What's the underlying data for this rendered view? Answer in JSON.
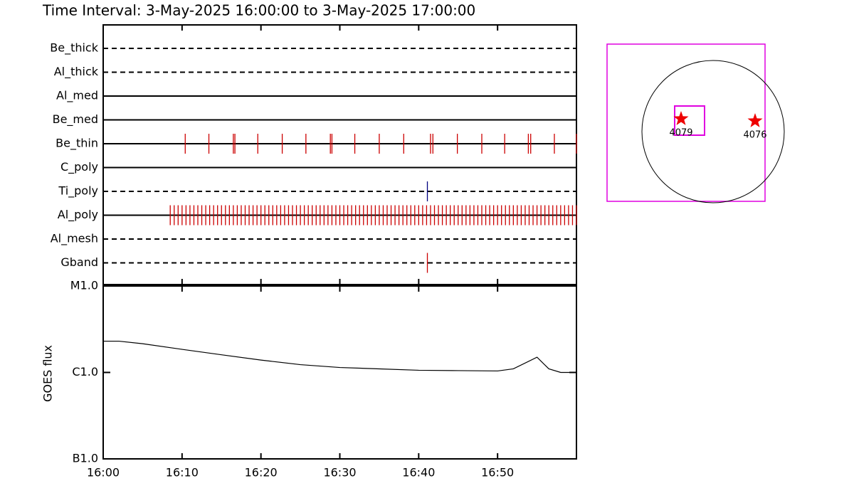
{
  "title": "Time Interval:  3-May-2025 16:00:00 to  3-May-2025 17:00:00",
  "chart_data": [
    {
      "type": "timeline",
      "xlim": [
        0,
        60
      ],
      "xticks": [
        {
          "value": 0,
          "label": "16:00"
        },
        {
          "value": 10,
          "label": "16:10"
        },
        {
          "value": 20,
          "label": "16:20"
        },
        {
          "value": 30,
          "label": "16:30"
        },
        {
          "value": 40,
          "label": "16:40"
        },
        {
          "value": 50,
          "label": "16:50"
        }
      ],
      "rows": [
        {
          "name": "Be_thick",
          "style": "dashed",
          "color": "#cc0000",
          "events": []
        },
        {
          "name": "Al_thick",
          "style": "dashed",
          "color": "#cc0000",
          "events": []
        },
        {
          "name": "Al_med",
          "style": "solid",
          "color": "#cc0000",
          "events": []
        },
        {
          "name": "Be_med",
          "style": "solid",
          "color": "#cc0000",
          "events": []
        },
        {
          "name": "Be_thin",
          "style": "solid",
          "color": "#cc0000",
          "events": [
            10.4,
            13.4,
            16.5,
            16.7,
            19.6,
            22.7,
            25.7,
            28.8,
            29.0,
            31.9,
            35.0,
            38.1,
            41.5,
            41.8,
            44.9,
            48.0,
            50.9,
            53.9,
            54.2,
            57.2,
            60.0
          ]
        },
        {
          "name": "C_poly",
          "style": "solid",
          "color": "#cc0000",
          "events": []
        },
        {
          "name": "Ti_poly",
          "style": "dashed",
          "color": "#000080",
          "events": [
            41.1
          ]
        },
        {
          "name": "Al_poly",
          "style": "solid",
          "color": "#cc0000",
          "events": [
            8.5,
            9,
            9.5,
            10,
            10.5,
            11,
            11.5,
            12,
            12.5,
            13,
            13.5,
            14,
            14.5,
            15,
            15.5,
            16,
            16.5,
            17,
            17.5,
            18,
            18.5,
            19,
            19.5,
            20,
            20.5,
            21,
            21.5,
            22,
            22.5,
            23,
            23.5,
            24,
            24.5,
            25,
            25.5,
            26,
            26.5,
            27,
            27.5,
            28,
            28.5,
            29,
            29.5,
            30,
            30.5,
            31,
            31.5,
            32,
            32.5,
            33,
            33.5,
            34,
            34.5,
            35,
            35.5,
            36,
            36.5,
            37,
            37.5,
            38,
            38.5,
            39,
            39.5,
            40,
            40.5,
            41,
            41.5,
            42,
            42.5,
            43,
            43.5,
            44,
            44.5,
            45,
            45.5,
            46,
            46.5,
            47,
            47.5,
            48,
            48.5,
            49,
            49.5,
            50,
            50.5,
            51,
            51.5,
            52,
            52.5,
            53,
            53.5,
            54,
            54.5,
            55,
            55.5,
            56,
            56.5,
            57,
            57.5,
            58,
            58.5,
            59,
            59.5,
            60
          ]
        },
        {
          "name": "Al_mesh",
          "style": "dashed",
          "color": "#cc0000",
          "events": []
        },
        {
          "name": "Gband",
          "style": "dashed",
          "color": "#cc0000",
          "events": [
            41.1
          ]
        }
      ]
    },
    {
      "type": "line",
      "y_label": "GOES flux",
      "log_y": true,
      "color": "#000000",
      "xlim": [
        0,
        60
      ],
      "xticks": [
        {
          "value": 0,
          "label": "16:00"
        },
        {
          "value": 10,
          "label": "16:10"
        },
        {
          "value": 20,
          "label": "16:20"
        },
        {
          "value": 30,
          "label": "16:30"
        },
        {
          "value": 40,
          "label": "16:40"
        },
        {
          "value": 50,
          "label": "16:50"
        }
      ],
      "ylim": [
        1e-07,
        1e-05
      ],
      "yticks": [
        {
          "value": 1e-07,
          "label": "B1.0"
        },
        {
          "value": 1e-06,
          "label": "C1.0"
        },
        {
          "value": 1e-05,
          "label": "M1.0"
        }
      ],
      "x": [
        0,
        2,
        5,
        10,
        15,
        20,
        25,
        30,
        35,
        40,
        45,
        50,
        52,
        55,
        56.5,
        58,
        60
      ],
      "values": [
        2.3e-06,
        2.3e-06,
        2.15e-06,
        1.85e-06,
        1.6e-06,
        1.39e-06,
        1.23e-06,
        1.14e-06,
        1.1e-06,
        1.06e-06,
        1.05e-06,
        1.04e-06,
        1.1e-06,
        1.5e-06,
        1.1e-06,
        1e-06,
        1e-06
      ]
    }
  ],
  "map": {
    "regions": [
      {
        "label": "4079"
      },
      {
        "label": "4076"
      }
    ]
  }
}
